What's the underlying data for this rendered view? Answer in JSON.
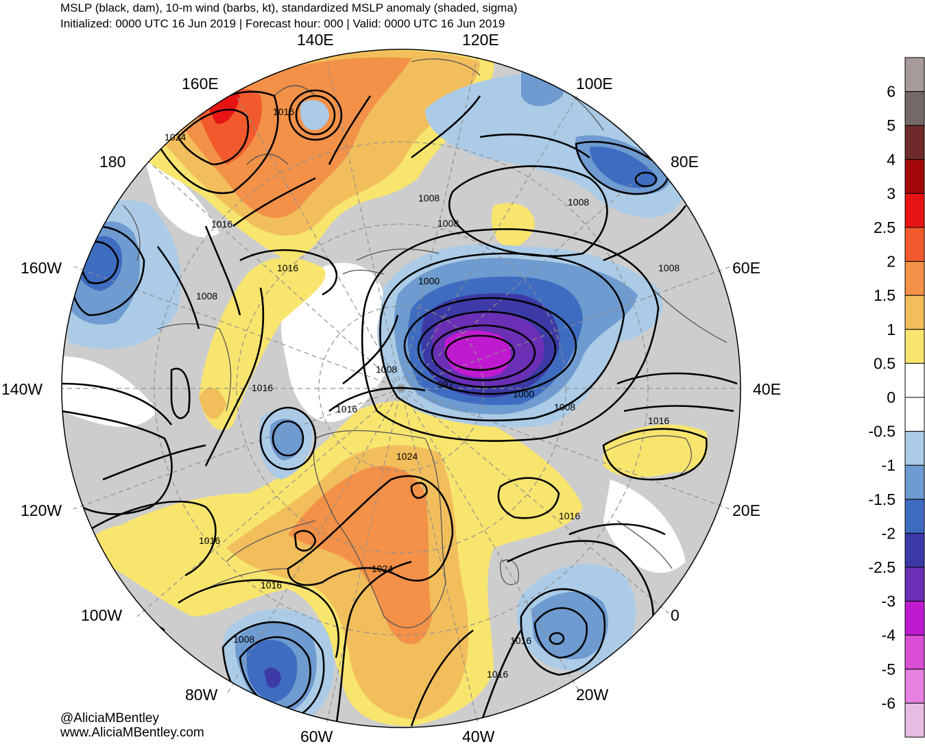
{
  "header": {
    "title": "MSLP (black, dam), 10-m wind (barbs, kt), standardized MSLP anomaly (shaded, sigma)",
    "subtitle": "Initialized: 0000 UTC 16 Jun 2019 | Forecast hour: 000 | Valid: 0000 UTC 16 Jun 2019"
  },
  "credits": {
    "handle": "@AliciaMBentley",
    "website": "www.AliciaMBentley.com"
  },
  "longitude_labels": {
    "e140": "140E",
    "e120": "120E",
    "e160": "160E",
    "e100": "100E",
    "w180": "180",
    "e80": "80E",
    "w160": "160W",
    "e60": "60E",
    "w140": "140W",
    "e40": "40E",
    "w120": "120W",
    "e20": "20E",
    "w100": "100W",
    "zero": "0",
    "w80": "80W",
    "w20": "20W",
    "w60": "60W",
    "w40": "40W"
  },
  "isobar_labels": {
    "l1016a": "1016",
    "l1024a": "1024",
    "l1016b": "1016",
    "l1016c": "1016",
    "l1008a": "1008",
    "l1008b": "1008",
    "l1008c": "1008",
    "l1008d": "1008",
    "l1000a": "1000",
    "l1008e": "1008",
    "l992": "992",
    "l1016d": "1016",
    "l1000b": "1000",
    "l1008f": "1008",
    "l1016e": "1016",
    "l1024b": "1024",
    "l1016f": "1016",
    "l1016g": "1016",
    "l1024c": "1024",
    "l1016h": "1016",
    "l1008g": "1008",
    "l1008h": "1008",
    "l1016i": "1016"
  },
  "colorbar": {
    "labels": [
      "6",
      "5",
      "4",
      "3",
      "2.5",
      "2",
      "1.5",
      "1",
      "0.5",
      "0",
      "-0.5",
      "-1",
      "-1.5",
      "-2",
      "-2.5",
      "-3",
      "-4",
      "-5",
      "-6"
    ],
    "colors": [
      "#a69a9a",
      "#756868",
      "#6e2a2a",
      "#a50808",
      "#e81414",
      "#f25a2e",
      "#f39148",
      "#f2be5c",
      "#f8e56e",
      "#ffffff",
      "#ffffff",
      "#abcbe6",
      "#6e9bd0",
      "#3e6cc0",
      "#3c3aa6",
      "#6a2fb4",
      "#c01ad0",
      "#da4ed6",
      "#e681e2",
      "#e7bde6"
    ]
  }
}
